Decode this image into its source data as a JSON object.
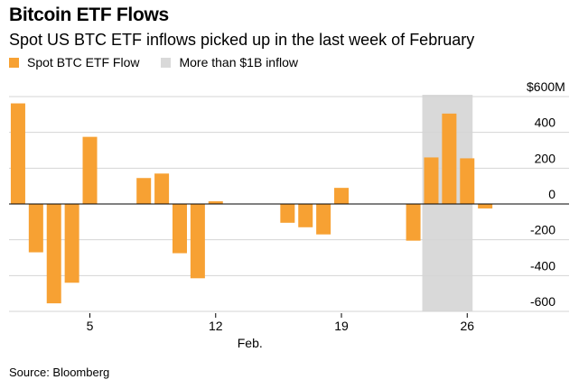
{
  "title": "Bitcoin ETF Flows",
  "subtitle": "Spot US BTC ETF inflows picked up in the last week of February",
  "source": "Source: Bloomberg",
  "legend": [
    {
      "label": "Spot BTC ETF Flow",
      "color": "#f7a133"
    },
    {
      "label": "More than $1B inflow",
      "color": "#d9d9d9"
    }
  ],
  "chart_data": {
    "type": "bar",
    "ylabel": "",
    "xlabel": "Feb.",
    "ylim": [
      -600,
      600
    ],
    "y_ticks": [
      {
        "value": 600,
        "label": "$600M"
      },
      {
        "value": 400,
        "label": "400"
      },
      {
        "value": 200,
        "label": "200"
      },
      {
        "value": 0,
        "label": "0"
      },
      {
        "value": -200,
        "label": "-200"
      },
      {
        "value": -400,
        "label": "-400"
      },
      {
        "value": -600,
        "label": "-600"
      }
    ],
    "x_range": [
      0.5,
      28.5
    ],
    "x_ticks": [
      {
        "value": 5,
        "label": "5"
      },
      {
        "value": 12,
        "label": "12"
      },
      {
        "value": 19,
        "label": "19"
      },
      {
        "value": 26,
        "label": "26"
      }
    ],
    "highlight": {
      "from": 23.5,
      "to": 26.3,
      "label": "More than $1B inflow"
    },
    "series": [
      {
        "name": "Spot BTC ETF Flow",
        "color": "#f7a133",
        "points": [
          {
            "x": 1,
            "y": 562
          },
          {
            "x": 2,
            "y": -270
          },
          {
            "x": 3,
            "y": -555
          },
          {
            "x": 4,
            "y": -440
          },
          {
            "x": 5,
            "y": 375
          },
          {
            "x": 8,
            "y": 145
          },
          {
            "x": 9,
            "y": 170
          },
          {
            "x": 10,
            "y": -275
          },
          {
            "x": 11,
            "y": -415
          },
          {
            "x": 12,
            "y": 15
          },
          {
            "x": 16,
            "y": -105
          },
          {
            "x": 17,
            "y": -130
          },
          {
            "x": 18,
            "y": -170
          },
          {
            "x": 19,
            "y": 90
          },
          {
            "x": 23,
            "y": -205
          },
          {
            "x": 24,
            "y": 260
          },
          {
            "x": 25,
            "y": 505
          },
          {
            "x": 26,
            "y": 255
          },
          {
            "x": 27,
            "y": -25
          }
        ]
      }
    ]
  }
}
